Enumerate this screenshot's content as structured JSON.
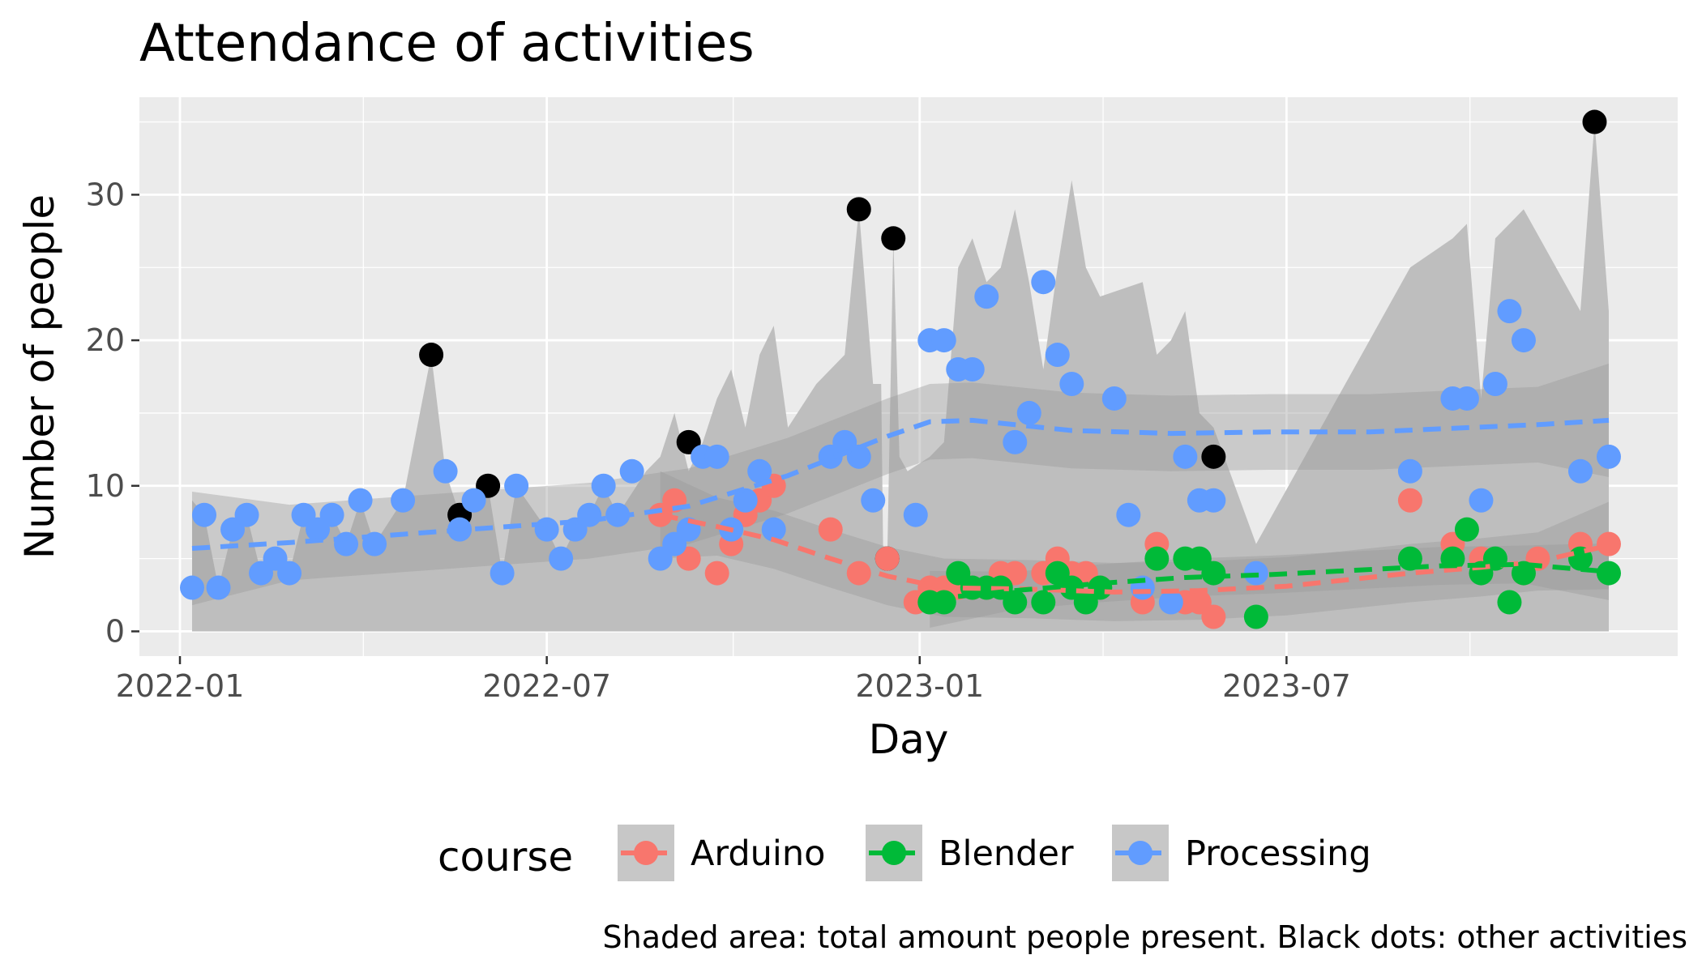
{
  "chart_data": {
    "type": "scatter",
    "title": "Attendance of activities",
    "xlabel": "Day",
    "ylabel": "Number of people",
    "caption": "Shaded area: total amount people present. Black dots: other activities",
    "legend": {
      "title": "course",
      "position": "bottom"
    },
    "x_range": [
      "2021-12-12",
      "2024-01-10"
    ],
    "y_range": [
      -1.7,
      36.7
    ],
    "x_ticks": [
      "2022-01-01",
      "2022-07-01",
      "2023-01-01",
      "2023-07-01"
    ],
    "x_tick_labels": [
      "2022-01",
      "2022-07",
      "2023-01",
      "2023-07"
    ],
    "y_ticks": [
      0,
      10,
      20,
      30
    ],
    "y_tick_labels": [
      "0",
      "10",
      "20",
      "30"
    ],
    "grid": true,
    "colors": {
      "panel": "#ebebeb",
      "grid": "#ffffff",
      "total_area": "#bebebe",
      "ribbon": "#999999",
      "other": "#000000",
      "Arduino": "#f8766d",
      "Blender": "#00ba38",
      "Processing": "#619cff"
    },
    "total_area": [
      [
        "2022-01-07",
        9
      ],
      [
        "2022-01-13",
        8
      ],
      [
        "2022-01-20",
        3
      ],
      [
        "2022-01-27",
        7
      ],
      [
        "2022-02-03",
        8
      ],
      [
        "2022-02-10",
        4
      ],
      [
        "2022-02-17",
        5
      ],
      [
        "2022-02-24",
        4
      ],
      [
        "2022-03-03",
        8
      ],
      [
        "2022-03-10",
        7
      ],
      [
        "2022-03-17",
        8
      ],
      [
        "2022-03-24",
        6
      ],
      [
        "2022-03-31",
        9
      ],
      [
        "2022-04-07",
        6
      ],
      [
        "2022-04-21",
        9
      ],
      [
        "2022-05-05",
        19
      ],
      [
        "2022-05-12",
        11
      ],
      [
        "2022-05-19",
        8
      ],
      [
        "2022-05-26",
        9
      ],
      [
        "2022-06-02",
        10
      ],
      [
        "2022-06-09",
        4
      ],
      [
        "2022-06-16",
        10
      ],
      [
        "2022-07-01",
        7
      ],
      [
        "2022-07-08",
        5
      ],
      [
        "2022-07-15",
        7
      ],
      [
        "2022-07-22",
        8
      ],
      [
        "2022-07-29",
        10
      ],
      [
        "2022-08-05",
        8
      ],
      [
        "2022-08-19",
        11
      ],
      [
        "2022-08-26",
        12
      ],
      [
        "2022-09-02",
        15
      ],
      [
        "2022-09-09",
        11
      ],
      [
        "2022-09-16",
        13
      ],
      [
        "2022-09-23",
        16
      ],
      [
        "2022-09-30",
        18
      ],
      [
        "2022-10-07",
        14
      ],
      [
        "2022-10-14",
        19
      ],
      [
        "2022-10-21",
        21
      ],
      [
        "2022-10-28",
        14
      ],
      [
        "2022-11-11",
        17
      ],
      [
        "2022-11-25",
        19
      ],
      [
        "2022-12-02",
        29
      ],
      [
        "2022-12-09",
        17
      ],
      [
        "2022-12-13",
        17
      ],
      [
        "2022-12-14",
        5
      ],
      [
        "2022-12-16",
        5
      ],
      [
        "2022-12-19",
        27
      ],
      [
        "2022-12-22",
        12
      ],
      [
        "2022-12-26",
        11
      ],
      [
        "2023-01-06",
        12
      ],
      [
        "2023-01-13",
        13
      ],
      [
        "2023-01-20",
        25
      ],
      [
        "2023-01-27",
        27
      ],
      [
        "2023-02-03",
        24
      ],
      [
        "2023-02-10",
        25
      ],
      [
        "2023-02-17",
        29
      ],
      [
        "2023-02-24",
        24
      ],
      [
        "2023-03-03",
        18
      ],
      [
        "2023-03-10",
        25
      ],
      [
        "2023-03-17",
        31
      ],
      [
        "2023-03-24",
        25
      ],
      [
        "2023-03-31",
        23
      ],
      [
        "2023-04-21",
        24
      ],
      [
        "2023-04-28",
        19
      ],
      [
        "2023-05-05",
        20
      ],
      [
        "2023-05-12",
        22
      ],
      [
        "2023-05-19",
        15
      ],
      [
        "2023-05-26",
        14
      ],
      [
        "2023-06-16",
        6
      ],
      [
        "2023-08-31",
        25
      ],
      [
        "2023-09-21",
        27
      ],
      [
        "2023-09-28",
        28
      ],
      [
        "2023-10-05",
        16
      ],
      [
        "2023-10-12",
        27
      ],
      [
        "2023-10-19",
        28
      ],
      [
        "2023-10-26",
        29
      ],
      [
        "2023-11-23",
        22
      ],
      [
        "2023-11-30",
        35
      ],
      [
        "2023-12-07",
        22
      ]
    ],
    "other_activities": [
      [
        "2022-05-05",
        19
      ],
      [
        "2022-05-19",
        8
      ],
      [
        "2022-06-02",
        10
      ],
      [
        "2022-09-09",
        13
      ],
      [
        "2022-12-02",
        29
      ],
      [
        "2022-12-16",
        5
      ],
      [
        "2022-12-19",
        27
      ],
      [
        "2023-05-26",
        12
      ],
      [
        "2023-11-30",
        35
      ]
    ],
    "series": [
      {
        "name": "Arduino",
        "points": [
          [
            "2022-08-26",
            8
          ],
          [
            "2022-09-02",
            9
          ],
          [
            "2022-09-09",
            5
          ],
          [
            "2022-09-23",
            4
          ],
          [
            "2022-09-30",
            6
          ],
          [
            "2022-10-07",
            8
          ],
          [
            "2022-10-14",
            9
          ],
          [
            "2022-10-21",
            10
          ],
          [
            "2022-11-18",
            7
          ],
          [
            "2022-12-02",
            4
          ],
          [
            "2022-12-16",
            5
          ],
          [
            "2022-12-30",
            2
          ],
          [
            "2023-01-06",
            3
          ],
          [
            "2023-01-13",
            3
          ],
          [
            "2023-01-20",
            3
          ],
          [
            "2023-01-27",
            3
          ],
          [
            "2023-02-03",
            3
          ],
          [
            "2023-02-10",
            4
          ],
          [
            "2023-02-17",
            4
          ],
          [
            "2023-03-03",
            4
          ],
          [
            "2023-03-10",
            5
          ],
          [
            "2023-03-17",
            4
          ],
          [
            "2023-03-24",
            4
          ],
          [
            "2023-03-31",
            3
          ],
          [
            "2023-04-21",
            2
          ],
          [
            "2023-04-28",
            6
          ],
          [
            "2023-05-12",
            2
          ],
          [
            "2023-05-19",
            2
          ],
          [
            "2023-05-26",
            1
          ],
          [
            "2023-08-31",
            9
          ],
          [
            "2023-09-21",
            6
          ],
          [
            "2023-10-05",
            5
          ],
          [
            "2023-10-26",
            4
          ],
          [
            "2023-11-02",
            5
          ],
          [
            "2023-11-23",
            6
          ],
          [
            "2023-12-07",
            6
          ]
        ],
        "trend": [
          [
            "2022-08-26",
            8.0
          ],
          [
            "2022-09-23",
            7.2
          ],
          [
            "2022-10-21",
            6.3
          ],
          [
            "2022-11-18",
            5.0
          ],
          [
            "2022-12-16",
            3.8
          ],
          [
            "2023-01-13",
            3.0
          ],
          [
            "2023-02-24",
            2.9
          ],
          [
            "2023-04-07",
            2.7
          ],
          [
            "2023-05-19",
            2.8
          ],
          [
            "2023-07-01",
            3.1
          ],
          [
            "2023-08-31",
            4.0
          ],
          [
            "2023-10-05",
            4.4
          ],
          [
            "2023-11-02",
            4.8
          ],
          [
            "2023-12-07",
            5.9
          ]
        ]
      },
      {
        "name": "Blender",
        "points": [
          [
            "2023-01-06",
            2
          ],
          [
            "2023-01-13",
            2
          ],
          [
            "2023-01-20",
            4
          ],
          [
            "2023-01-27",
            3
          ],
          [
            "2023-02-03",
            3
          ],
          [
            "2023-02-10",
            3
          ],
          [
            "2023-02-17",
            2
          ],
          [
            "2023-03-03",
            2
          ],
          [
            "2023-03-10",
            4
          ],
          [
            "2023-03-17",
            3
          ],
          [
            "2023-03-24",
            2
          ],
          [
            "2023-03-31",
            3
          ],
          [
            "2023-04-28",
            5
          ],
          [
            "2023-05-12",
            5
          ],
          [
            "2023-05-19",
            5
          ],
          [
            "2023-05-26",
            4
          ],
          [
            "2023-06-16",
            1
          ],
          [
            "2023-08-31",
            5
          ],
          [
            "2023-09-21",
            5
          ],
          [
            "2023-09-28",
            7
          ],
          [
            "2023-10-05",
            4
          ],
          [
            "2023-10-12",
            5
          ],
          [
            "2023-10-19",
            2
          ],
          [
            "2023-10-26",
            4
          ],
          [
            "2023-11-23",
            5
          ],
          [
            "2023-12-07",
            4
          ]
        ],
        "trend": [
          [
            "2023-01-06",
            2.2
          ],
          [
            "2023-02-17",
            2.8
          ],
          [
            "2023-03-31",
            3.3
          ],
          [
            "2023-05-12",
            3.7
          ],
          [
            "2023-06-23",
            3.9
          ],
          [
            "2023-08-04",
            4.2
          ],
          [
            "2023-09-15",
            4.5
          ],
          [
            "2023-10-26",
            4.6
          ],
          [
            "2023-12-07",
            4.1
          ]
        ]
      },
      {
        "name": "Processing",
        "points": [
          [
            "2022-01-07",
            3
          ],
          [
            "2022-01-13",
            8
          ],
          [
            "2022-01-20",
            3
          ],
          [
            "2022-01-27",
            7
          ],
          [
            "2022-02-03",
            8
          ],
          [
            "2022-02-10",
            4
          ],
          [
            "2022-02-17",
            5
          ],
          [
            "2022-02-24",
            4
          ],
          [
            "2022-03-03",
            8
          ],
          [
            "2022-03-10",
            7
          ],
          [
            "2022-03-17",
            8
          ],
          [
            "2022-03-24",
            6
          ],
          [
            "2022-03-31",
            9
          ],
          [
            "2022-04-07",
            6
          ],
          [
            "2022-04-21",
            9
          ],
          [
            "2022-05-12",
            11
          ],
          [
            "2022-05-19",
            7
          ],
          [
            "2022-05-26",
            9
          ],
          [
            "2022-06-09",
            4
          ],
          [
            "2022-06-16",
            10
          ],
          [
            "2022-07-01",
            7
          ],
          [
            "2022-07-08",
            5
          ],
          [
            "2022-07-15",
            7
          ],
          [
            "2022-07-22",
            8
          ],
          [
            "2022-07-29",
            10
          ],
          [
            "2022-08-05",
            8
          ],
          [
            "2022-08-12",
            11
          ],
          [
            "2022-08-26",
            5
          ],
          [
            "2022-09-02",
            6
          ],
          [
            "2022-09-09",
            7
          ],
          [
            "2022-09-16",
            12
          ],
          [
            "2022-09-23",
            12
          ],
          [
            "2022-09-30",
            7
          ],
          [
            "2022-10-07",
            9
          ],
          [
            "2022-10-14",
            11
          ],
          [
            "2022-10-21",
            7
          ],
          [
            "2022-11-18",
            12
          ],
          [
            "2022-11-25",
            13
          ],
          [
            "2022-12-02",
            12
          ],
          [
            "2022-12-09",
            9
          ],
          [
            "2022-12-30",
            8
          ],
          [
            "2023-01-06",
            20
          ],
          [
            "2023-01-13",
            20
          ],
          [
            "2023-01-20",
            18
          ],
          [
            "2023-01-27",
            18
          ],
          [
            "2023-02-03",
            23
          ],
          [
            "2023-02-17",
            13
          ],
          [
            "2023-02-24",
            15
          ],
          [
            "2023-03-03",
            24
          ],
          [
            "2023-03-10",
            19
          ],
          [
            "2023-03-17",
            17
          ],
          [
            "2023-04-07",
            16
          ],
          [
            "2023-04-14",
            8
          ],
          [
            "2023-04-21",
            3
          ],
          [
            "2023-05-05",
            2
          ],
          [
            "2023-05-12",
            12
          ],
          [
            "2023-05-19",
            9
          ],
          [
            "2023-05-26",
            9
          ],
          [
            "2023-06-16",
            4
          ],
          [
            "2023-08-31",
            11
          ],
          [
            "2023-09-21",
            16
          ],
          [
            "2023-09-28",
            16
          ],
          [
            "2023-10-05",
            9
          ],
          [
            "2023-10-12",
            17
          ],
          [
            "2023-10-19",
            22
          ],
          [
            "2023-10-26",
            20
          ],
          [
            "2023-11-23",
            11
          ],
          [
            "2023-12-07",
            12
          ]
        ],
        "trend": [
          [
            "2022-01-07",
            5.7
          ],
          [
            "2022-02-24",
            6.1
          ],
          [
            "2022-04-14",
            6.6
          ],
          [
            "2022-06-02",
            7.1
          ],
          [
            "2022-07-22",
            7.6
          ],
          [
            "2022-09-09",
            8.6
          ],
          [
            "2022-10-28",
            10.7
          ],
          [
            "2022-12-16",
            13.4
          ],
          [
            "2023-01-06",
            14.4
          ],
          [
            "2023-01-27",
            14.5
          ],
          [
            "2023-03-17",
            13.8
          ],
          [
            "2023-05-05",
            13.6
          ],
          [
            "2023-06-23",
            13.7
          ],
          [
            "2023-08-11",
            13.7
          ],
          [
            "2023-09-29",
            14.0
          ],
          [
            "2023-11-02",
            14.2
          ],
          [
            "2023-12-07",
            14.5
          ]
        ]
      }
    ]
  }
}
